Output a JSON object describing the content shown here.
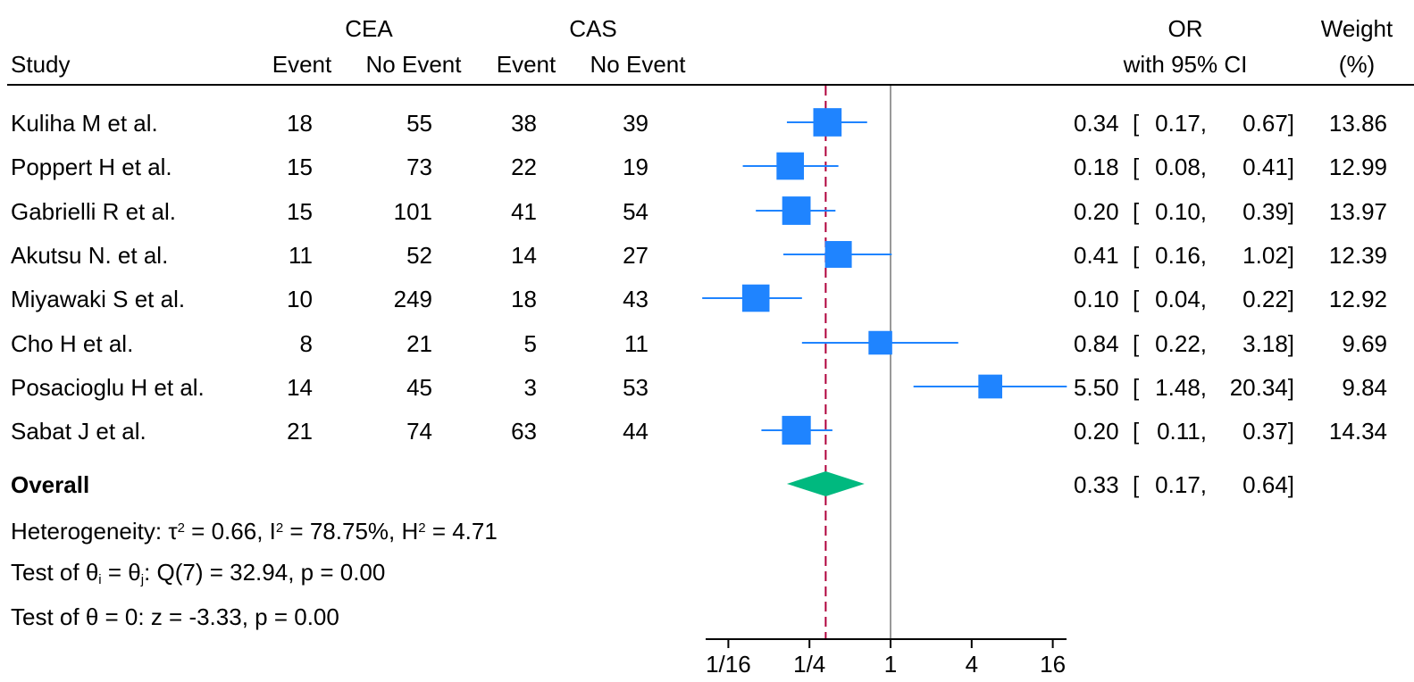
{
  "header": {
    "group1": "CEA",
    "group2": "CAS",
    "study": "Study",
    "event": "Event",
    "no_event": "No Event",
    "or_line1": "OR",
    "or_line2": "with 95% CI",
    "weight_line1": "Weight",
    "weight_line2": "(%)"
  },
  "studies": [
    {
      "name": "Kuliha M et al.",
      "cea_event": "18",
      "cea_no_event": "55",
      "cas_event": "38",
      "cas_no_event": "39",
      "or": "0.34",
      "ci_lo": "0.17,",
      "ci_hi": "0.67]",
      "weight": "13.86"
    },
    {
      "name": "Poppert H et al.",
      "cea_event": "15",
      "cea_no_event": "73",
      "cas_event": "22",
      "cas_no_event": "19",
      "or": "0.18",
      "ci_lo": "0.08,",
      "ci_hi": "0.41]",
      "weight": "12.99"
    },
    {
      "name": "Gabrielli R et al.",
      "cea_event": "15",
      "cea_no_event": "101",
      "cas_event": "41",
      "cas_no_event": "54",
      "or": "0.20",
      "ci_lo": "0.10,",
      "ci_hi": "0.39]",
      "weight": "13.97"
    },
    {
      "name": "Akutsu N. et al.",
      "cea_event": "11",
      "cea_no_event": "52",
      "cas_event": "14",
      "cas_no_event": "27",
      "or": "0.41",
      "ci_lo": "0.16,",
      "ci_hi": "1.02]",
      "weight": "12.39"
    },
    {
      "name": "Miyawaki S et al.",
      "cea_event": "10",
      "cea_no_event": "249",
      "cas_event": "18",
      "cas_no_event": "43",
      "or": "0.10",
      "ci_lo": "0.04,",
      "ci_hi": "0.22]",
      "weight": "12.92"
    },
    {
      "name": "Cho H et al.",
      "cea_event": "8",
      "cea_no_event": "21",
      "cas_event": "5",
      "cas_no_event": "11",
      "or": "0.84",
      "ci_lo": "0.22,",
      "ci_hi": "3.18]",
      "weight": "9.69"
    },
    {
      "name": "Posacioglu H et al.",
      "cea_event": "14",
      "cea_no_event": "45",
      "cas_event": "3",
      "cas_no_event": "53",
      "or": "5.50",
      "ci_lo": "1.48,",
      "ci_hi": "20.34]",
      "weight": "9.84"
    },
    {
      "name": "Sabat J et al.",
      "cea_event": "21",
      "cea_no_event": "74",
      "cas_event": "63",
      "cas_no_event": "44",
      "or": "0.20",
      "ci_lo": "0.11,",
      "ci_hi": "0.37]",
      "weight": "14.34"
    }
  ],
  "overall": {
    "label": "Overall",
    "or": "0.33",
    "ci_lo": "0.17,",
    "ci_hi": "0.64]"
  },
  "stats": {
    "heterogeneity": {
      "p1": "Heterogeneity: τ",
      "p2": "2",
      "p3": " = 0.66, I",
      "p4": "2",
      "p5": " = 78.75%, H",
      "p6": "2",
      "p7": " = 4.71"
    },
    "test_theta_i": {
      "p1": "Test of θ",
      "p2": "i",
      "p3": " = θ",
      "p4": "j",
      "p5": ": Q(7) = 32.94, p = 0.00"
    },
    "test_theta_zero": "Test of θ = 0: z = -3.33, p = 0.00"
  },
  "chart_data": {
    "type": "forest",
    "x_scale": "log2",
    "xlim": [
      0.04,
      20.34
    ],
    "x_ticks": [
      0.0625,
      0.25,
      1,
      4,
      16
    ],
    "x_tick_labels": [
      "1/16",
      "1/4",
      "1",
      "4",
      "16"
    ],
    "reference_line": 1,
    "overall_line": 0.33,
    "series": [
      {
        "study": "Kuliha M et al.",
        "or": 0.34,
        "lo": 0.17,
        "hi": 0.67,
        "weight": 13.86
      },
      {
        "study": "Poppert H et al.",
        "or": 0.18,
        "lo": 0.08,
        "hi": 0.41,
        "weight": 12.99
      },
      {
        "study": "Gabrielli R et al.",
        "or": 0.2,
        "lo": 0.1,
        "hi": 0.39,
        "weight": 13.97
      },
      {
        "study": "Akutsu N. et al.",
        "or": 0.41,
        "lo": 0.16,
        "hi": 1.02,
        "weight": 12.39
      },
      {
        "study": "Miyawaki S et al.",
        "or": 0.1,
        "lo": 0.04,
        "hi": 0.22,
        "weight": 12.92
      },
      {
        "study": "Cho H et al.",
        "or": 0.84,
        "lo": 0.22,
        "hi": 3.18,
        "weight": 9.69
      },
      {
        "study": "Posacioglu H et al.",
        "or": 5.5,
        "lo": 1.48,
        "hi": 20.34,
        "weight": 9.84
      },
      {
        "study": "Sabat J et al.",
        "or": 0.2,
        "lo": 0.11,
        "hi": 0.37,
        "weight": 14.34
      }
    ],
    "overall": {
      "or": 0.33,
      "lo": 0.17,
      "hi": 0.64
    },
    "colors": {
      "study_marker": "#1f84ff",
      "overall_marker": "#00b97f",
      "overall_line": "#b0003c",
      "reference_line": "#999999"
    }
  }
}
